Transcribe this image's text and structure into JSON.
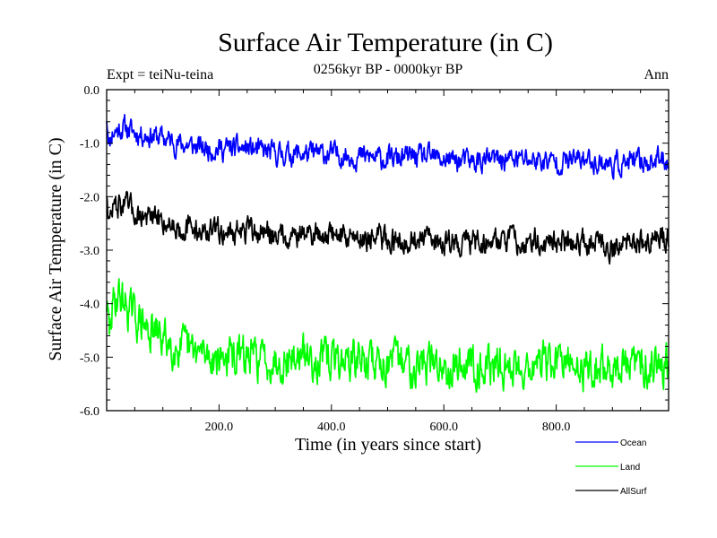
{
  "chart_data": {
    "type": "line",
    "title": "Surface Air Temperature (in C)",
    "subtitle": "0256kyr BP - 0000kyr BP",
    "left_label": "Expt = teiNu-teina",
    "right_label": "Ann",
    "xlabel": "Time (in years since start)",
    "ylabel": "Surface Air Temperature (in C)",
    "xlim": [
      0,
      1000
    ],
    "ylim": [
      -6.0,
      0.0
    ],
    "x_ticks": [
      200,
      400,
      600,
      800
    ],
    "x_tick_labels": [
      "200.0",
      "400.0",
      "600.0",
      "800.0"
    ],
    "y_ticks": [
      0,
      -1,
      -2,
      -3,
      -4,
      -5,
      -6
    ],
    "y_tick_labels": [
      "0.0",
      "-1.0",
      "-2.0",
      "-3.0",
      "-4.0",
      "-5.0",
      "-6.0"
    ],
    "legend_position": "bottom-right",
    "series": [
      {
        "name": "Ocean",
        "color": "#0000ff",
        "x": [
          0,
          5,
          10,
          20,
          30,
          50,
          75,
          100,
          125,
          150,
          175,
          200,
          250,
          300,
          350,
          400,
          450,
          500,
          550,
          600,
          650,
          700,
          750,
          800,
          850,
          900,
          950,
          1000
        ],
        "values": [
          -0.5,
          -1.0,
          -0.8,
          -0.75,
          -0.7,
          -0.8,
          -0.85,
          -0.9,
          -1.0,
          -1.05,
          -1.1,
          -1.1,
          -1.1,
          -1.2,
          -1.2,
          -1.2,
          -1.25,
          -1.3,
          -1.25,
          -1.3,
          -1.35,
          -1.3,
          -1.3,
          -1.35,
          -1.3,
          -1.4,
          -1.35,
          -1.3
        ]
      },
      {
        "name": "Land",
        "color": "#00ff00",
        "x": [
          0,
          5,
          10,
          20,
          30,
          50,
          75,
          100,
          125,
          150,
          175,
          200,
          250,
          300,
          350,
          400,
          450,
          500,
          550,
          600,
          650,
          700,
          750,
          800,
          850,
          900,
          950,
          1000
        ],
        "values": [
          -4.0,
          -4.6,
          -4.1,
          -3.8,
          -3.95,
          -4.25,
          -4.5,
          -4.65,
          -4.8,
          -4.9,
          -4.95,
          -5.0,
          -5.0,
          -5.05,
          -5.0,
          -5.05,
          -5.05,
          -5.1,
          -5.1,
          -5.15,
          -5.1,
          -5.2,
          -5.15,
          -5.1,
          -5.2,
          -5.2,
          -5.15,
          -5.05
        ]
      },
      {
        "name": "AllSurf",
        "color": "#000000",
        "x": [
          0,
          5,
          10,
          20,
          30,
          50,
          75,
          100,
          125,
          150,
          175,
          200,
          250,
          300,
          350,
          400,
          450,
          500,
          550,
          600,
          650,
          700,
          750,
          800,
          850,
          900,
          950,
          1000
        ],
        "values": [
          -1.9,
          -2.5,
          -2.2,
          -2.15,
          -2.15,
          -2.3,
          -2.4,
          -2.45,
          -2.55,
          -2.6,
          -2.65,
          -2.65,
          -2.65,
          -2.7,
          -2.7,
          -2.7,
          -2.75,
          -2.8,
          -2.8,
          -2.85,
          -2.85,
          -2.8,
          -2.85,
          -2.85,
          -2.8,
          -2.95,
          -2.85,
          -2.75
        ]
      }
    ]
  }
}
